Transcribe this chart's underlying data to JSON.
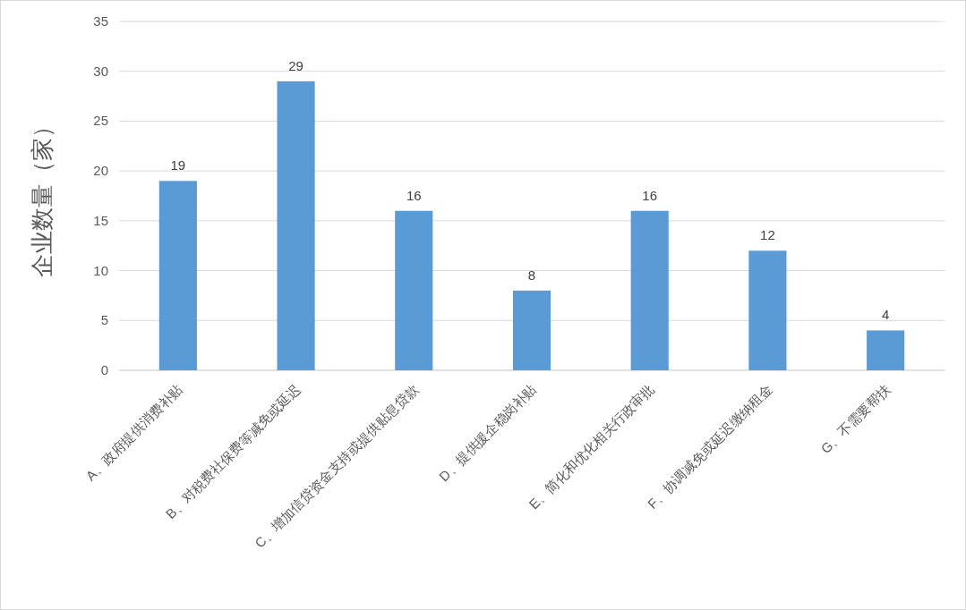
{
  "chart_data": {
    "type": "bar",
    "ylabel": "企业数量（家）",
    "categories": [
      "A、政府提供消费补贴",
      "B、对税费社保费等减免或延迟",
      "C、增加信贷资金支持或提供贴息贷款",
      "D、提供援企稳岗补贴",
      "E、简化和优化相关行政审批",
      "F、协调减免或延迟缴纳租金",
      "G、不需要帮扶"
    ],
    "values": [
      19,
      29,
      16,
      8,
      16,
      12,
      4
    ],
    "color": "#5b9bd5",
    "ylim": [
      0,
      35
    ],
    "yticks": [
      0,
      5,
      10,
      15,
      20,
      25,
      30,
      35
    ],
    "grid": "y",
    "data_labels": true
  }
}
